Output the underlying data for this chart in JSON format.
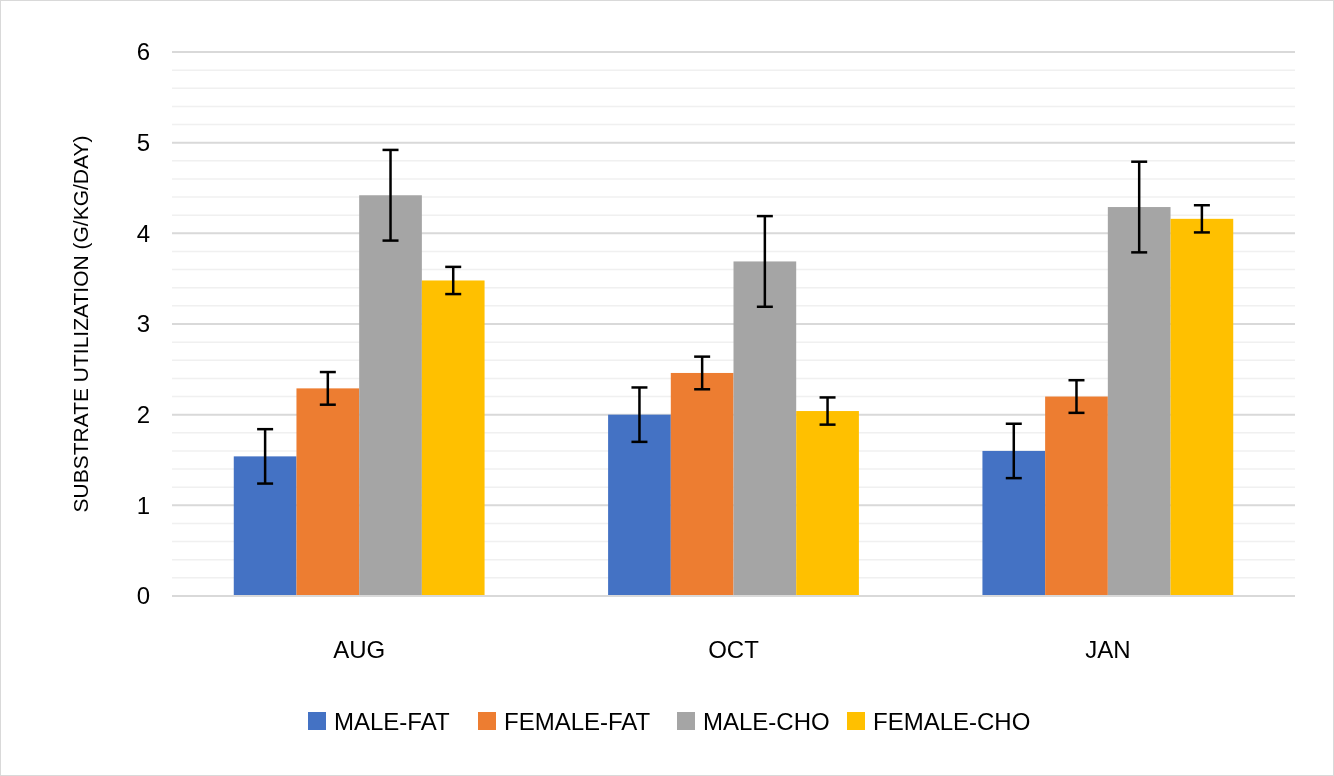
{
  "chart_data": {
    "type": "bar",
    "ylabel": "SUBSTRATE UTILIZATION (G/KG/DAY)",
    "categories": [
      "AUG",
      "OCT",
      "JAN"
    ],
    "series": [
      {
        "name": "MALE-FAT",
        "color": "#4472c4",
        "values": [
          1.54,
          2.0,
          1.6
        ],
        "errors": [
          0.3,
          0.3,
          0.3
        ]
      },
      {
        "name": "FEMALE-FAT",
        "color": "#ed7d31",
        "values": [
          2.29,
          2.46,
          2.2
        ],
        "errors": [
          0.18,
          0.18,
          0.18
        ]
      },
      {
        "name": "MALE-CHO",
        "color": "#a5a5a5",
        "values": [
          4.42,
          3.69,
          4.29
        ],
        "errors": [
          0.5,
          0.5,
          0.5
        ]
      },
      {
        "name": "FEMALE-CHO",
        "color": "#ffc000",
        "values": [
          3.48,
          2.04,
          4.16
        ],
        "errors": [
          0.15,
          0.15,
          0.15
        ]
      }
    ],
    "ylim": [
      0,
      6
    ],
    "yticks": [
      0,
      {
        "value": 0.2,
        "label": null
      },
      {
        "value": 0.4,
        "label": null
      },
      {
        "value": 0.6,
        "label": null
      },
      {
        "value": 0.8,
        "label": null
      },
      1,
      {
        "value": 1.2,
        "label": null
      },
      {
        "value": 1.4,
        "label": null
      },
      {
        "value": 1.6,
        "label": null
      },
      {
        "value": 1.8,
        "label": null
      },
      2,
      {
        "value": 2.2,
        "label": null
      },
      {
        "value": 2.4,
        "label": null
      },
      {
        "value": 2.6,
        "label": null
      },
      {
        "value": 2.8,
        "label": null
      },
      3,
      {
        "value": 3.2,
        "label": null
      },
      {
        "value": 3.4,
        "label": null
      },
      {
        "value": 3.6,
        "label": null
      },
      {
        "value": 3.8,
        "label": null
      },
      4,
      {
        "value": 4.2,
        "label": null
      },
      {
        "value": 4.4,
        "label": null
      },
      {
        "value": 4.6,
        "label": null
      },
      {
        "value": 4.8,
        "label": null
      },
      5,
      {
        "value": 5.2,
        "label": null
      },
      {
        "value": 5.4,
        "label": null
      },
      {
        "value": 5.6,
        "label": null
      },
      {
        "value": 5.8,
        "label": null
      },
      6
    ],
    "grid": "y",
    "legend": "bottom"
  }
}
